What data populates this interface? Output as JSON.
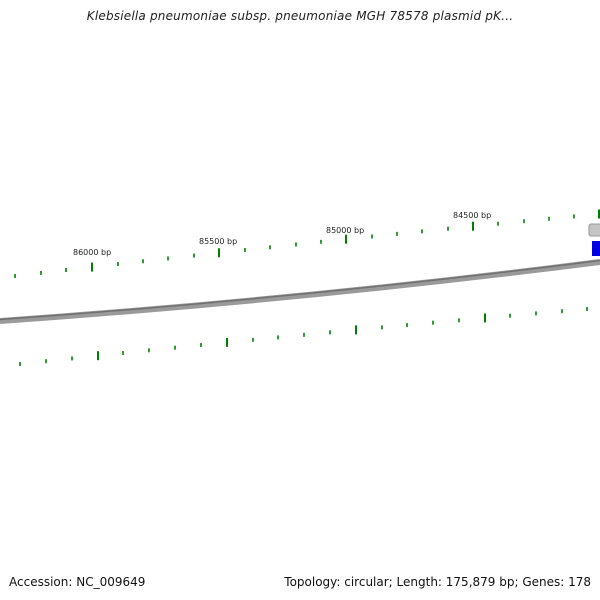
{
  "header": {
    "title": "Klebsiella pneumoniae subsp. pneumoniae MGH 78578 plasmid pK..."
  },
  "footer": {
    "accession": "Accession: NC_009649",
    "summary": "Topology: circular; Length: 175,879 bp; Genes: 178"
  },
  "map": {
    "tick_labels": [
      "86000 bp",
      "85500 bp",
      "85000 bp",
      "84500 bp"
    ],
    "colors": {
      "backbone": "#808080",
      "tick": "#008000",
      "gene_forward": "#0000e0",
      "gene_band": "#b0b0b0"
    }
  }
}
